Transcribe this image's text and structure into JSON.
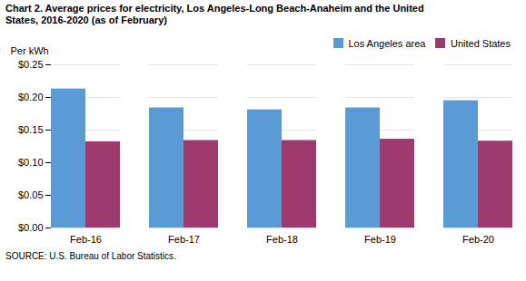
{
  "chart_data": {
    "type": "bar",
    "title": "Chart 2. Average prices for electricity, Los Angeles-Long Beach-Anaheim and the United\nStates, 2016-2020  (as of February)",
    "ylabel": "Per kWh",
    "caption": "SOURCE: U.S. Bureau of Labor Statistics.",
    "categories": [
      "Feb-16",
      "Feb-17",
      "Feb-18",
      "Feb-19",
      "Feb-20"
    ],
    "series": [
      {
        "name": "Los Angeles area",
        "color": "#5B9BD5",
        "values": [
          0.213,
          0.184,
          0.181,
          0.184,
          0.195
        ]
      },
      {
        "name": "United States",
        "color": "#9E3A6E",
        "values": [
          0.132,
          0.134,
          0.134,
          0.136,
          0.133
        ]
      }
    ],
    "ylim": [
      0,
      0.25
    ],
    "yticks": [
      {
        "value": 0.0,
        "label": "$0.00"
      },
      {
        "value": 0.05,
        "label": "$0.05"
      },
      {
        "value": 0.1,
        "label": "$0.10"
      },
      {
        "value": 0.15,
        "label": "$0.15"
      },
      {
        "value": 0.2,
        "label": "$0.20"
      },
      {
        "value": 0.25,
        "label": "$0.25"
      }
    ],
    "grid": true,
    "legend": "upper right"
  }
}
